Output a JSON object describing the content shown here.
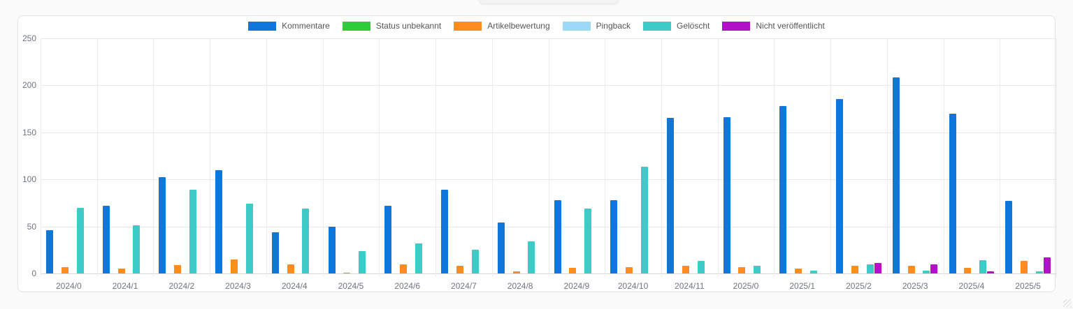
{
  "chart_data": {
    "type": "bar",
    "title": "",
    "xlabel": "",
    "ylabel": "",
    "ylim": [
      0,
      250
    ],
    "yticks": [
      0,
      50,
      100,
      150,
      200,
      250
    ],
    "grid": true,
    "legend_position": "top-center",
    "categories": [
      "2024/0",
      "2024/1",
      "2024/2",
      "2024/3",
      "2024/4",
      "2024/5",
      "2024/6",
      "2024/7",
      "2024/8",
      "2024/9",
      "2024/10",
      "2024/11",
      "2025/0",
      "2025/1",
      "2025/2",
      "2025/3",
      "2025/4",
      "2025/5"
    ],
    "series": [
      {
        "name": "Kommentare",
        "color": "#0e77d9",
        "values": [
          46,
          72,
          102,
          110,
          44,
          50,
          72,
          89,
          54,
          78,
          78,
          165,
          166,
          178,
          185,
          208,
          170,
          77
        ]
      },
      {
        "name": "Status unbekannt",
        "color": "#2ecc38",
        "values": [
          0,
          0,
          0,
          0,
          0,
          0,
          0,
          0,
          0,
          0,
          0,
          0,
          0,
          0,
          0,
          0,
          0,
          0
        ]
      },
      {
        "name": "Artikelbewertung",
        "color": "#ff8c1e",
        "values": [
          7,
          5,
          9,
          15,
          10,
          1,
          10,
          8,
          2,
          6,
          7,
          8,
          7,
          5,
          8,
          8,
          6,
          13
        ]
      },
      {
        "name": "Pingback",
        "color": "#9bd9f7",
        "values": [
          0,
          0,
          0,
          0,
          0,
          0,
          0,
          0,
          0,
          0,
          0,
          0,
          0,
          0,
          0,
          0,
          0,
          0
        ]
      },
      {
        "name": "Gelöscht",
        "color": "#3ecbc7",
        "values": [
          70,
          51,
          89,
          74,
          69,
          24,
          32,
          25,
          34,
          69,
          113,
          13,
          8,
          3,
          10,
          3,
          14,
          2
        ]
      },
      {
        "name": "Nicht veröffentlicht",
        "color": "#b211c8",
        "values": [
          0,
          0,
          0,
          0,
          0,
          0,
          0,
          0,
          0,
          0,
          0,
          0,
          0,
          0,
          11,
          10,
          2,
          17
        ]
      }
    ]
  }
}
